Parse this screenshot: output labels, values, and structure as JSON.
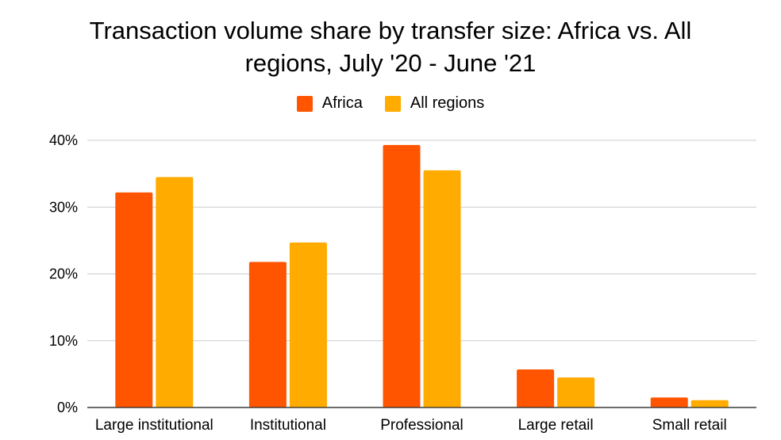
{
  "chart_data": {
    "type": "bar",
    "title_lines": [
      "Transaction volume share by transfer size: Africa vs. All",
      "regions, July '20 - June '21"
    ],
    "categories": [
      "Large institutional",
      "Institutional",
      "Professional",
      "Large retail",
      "Small retail"
    ],
    "series": [
      {
        "name": "Africa",
        "color": "#ff5500",
        "values": [
          32.2,
          21.8,
          39.3,
          5.7,
          1.5
        ]
      },
      {
        "name": "All regions",
        "color": "#ffab00",
        "values": [
          34.5,
          24.7,
          35.5,
          4.5,
          1.1
        ]
      }
    ],
    "ylim": [
      0,
      40
    ],
    "yticks": [
      0,
      10,
      20,
      30,
      40
    ],
    "ytick_labels": [
      "0%",
      "10%",
      "20%",
      "30%",
      "40%"
    ],
    "grid": true,
    "legend_position": "top-center"
  }
}
